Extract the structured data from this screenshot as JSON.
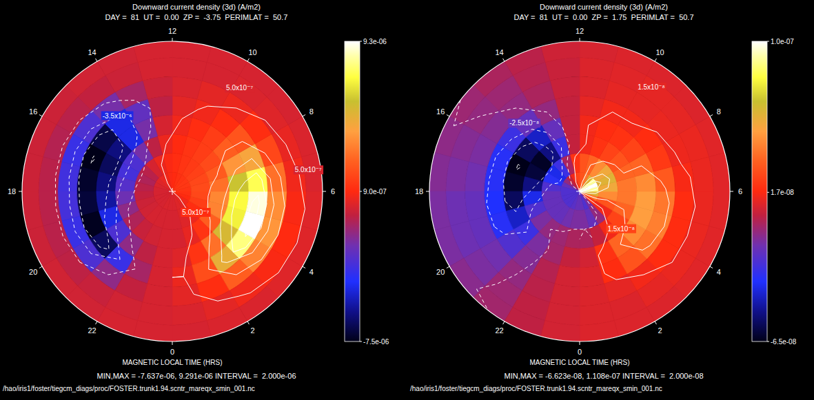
{
  "chart_data": [
    {
      "type": "polar_heatmap",
      "title": "Downward current density (3d) (A/m2)",
      "subtitle": "DAY =  81  UT =  0.00  ZP =  -3.75  PERIMLAT =  50.7",
      "axis_label": "MAGNETIC LOCAL TIME (HRS)",
      "footer": "MIN,MAX = -7.637e-06, 9.291e-06 INTERVAL =  2.000e-06",
      "source": "/hao/iris1/foster/tiegcm_diags/proc/FOSTER.trunk1.94.scntr_mareqx_smin_001.nc",
      "mlt_ticks": [
        0,
        2,
        4,
        6,
        8,
        10,
        12,
        14,
        16,
        18,
        20,
        22
      ],
      "mlt_edges": [
        0,
        1,
        2,
        3,
        4,
        5,
        6,
        7,
        8,
        9,
        10,
        11,
        12,
        13,
        14,
        15,
        16,
        17,
        18,
        19,
        20,
        21,
        22,
        23,
        24
      ],
      "lat_edges": [
        90,
        85,
        80,
        75,
        70,
        65,
        60,
        55,
        50.7
      ],
      "cells": [
        [
          1e-07,
          2e-07,
          3e-07,
          6e-07,
          9e-07,
          1.1e-06,
          1.2e-06,
          1.3e-06,
          1.3e-06,
          1.2e-06,
          1.1e-06,
          9e-07,
          8e-07,
          6e-07,
          4e-07,
          2e-07,
          1e-07,
          0,
          0,
          0,
          0,
          0,
          1e-07,
          1e-07
        ],
        [
          0,
          2e-07,
          5e-07,
          1e-06,
          1.5e-06,
          1.8e-06,
          1.9e-06,
          1.8e-06,
          1.6e-06,
          1.4e-06,
          1.2e-06,
          1e-06,
          8e-07,
          5e-07,
          0,
          -6e-07,
          -8e-07,
          -6e-07,
          -4e-07,
          -2e-07,
          -1e-07,
          0,
          0,
          0
        ],
        [
          0,
          4e-07,
          1.2e-06,
          2.5e-06,
          3.5e-06,
          3.6e-06,
          3e-06,
          2.4e-06,
          1.9e-06,
          1.5e-06,
          1.2e-06,
          9e-07,
          5e-07,
          -5e-07,
          -2e-06,
          -3e-06,
          -3.2e-06,
          -2.8e-06,
          -2.2e-06,
          -1.5e-06,
          -8e-07,
          -3e-07,
          -1e-07,
          0
        ],
        [
          2e-07,
          1.2e-06,
          3e-06,
          5.5e-06,
          7e-06,
          7.2e-06,
          6e-06,
          4e-06,
          2.5e-06,
          1.5e-06,
          1e-06,
          6e-07,
          0,
          -2e-06,
          -4.5e-06,
          -6e-06,
          -6.5e-06,
          -6e-06,
          -5.5e-06,
          -4.5e-06,
          -3e-06,
          -1.5e-06,
          -5e-07,
          0
        ],
        [
          5e-07,
          2e-06,
          5e-06,
          8e-06,
          9.3e-06,
          9e-06,
          7.5e-06,
          4.5e-06,
          2.2e-06,
          1e-06,
          6e-07,
          3e-07,
          -5e-07,
          -2.5e-06,
          -4.5e-06,
          -6.8e-06,
          -7.6e-06,
          -7.2e-06,
          -7e-06,
          -7.4e-06,
          -6.5e-06,
          -3.5e-06,
          -1e-06,
          0
        ],
        [
          3e-07,
          1e-06,
          2.5e-06,
          3.5e-06,
          4e-06,
          3.8e-06,
          3e-06,
          1.8e-06,
          1e-06,
          5e-07,
          3e-07,
          1e-07,
          -2e-07,
          -1e-06,
          -2e-06,
          -3e-06,
          -3.5e-06,
          -3.3e-06,
          -3.2e-06,
          -3.5e-06,
          -3e-06,
          -1.5e-06,
          -4e-07,
          0
        ],
        [
          1e-07,
          3e-07,
          6e-07,
          8e-07,
          9e-07,
          8e-07,
          6e-07,
          4e-07,
          2e-07,
          1e-07,
          0,
          0,
          0,
          -2e-07,
          -4e-07,
          -6e-07,
          -7e-07,
          -6e-07,
          -6e-07,
          -6e-07,
          -5e-07,
          -3e-07,
          -1e-07,
          0
        ],
        [
          0,
          1e-07,
          1e-07,
          2e-07,
          2e-07,
          2e-07,
          1e-07,
          1e-07,
          0,
          0,
          0,
          0,
          0,
          -1e-07,
          -1e-07,
          -2e-07,
          -2e-07,
          -2e-07,
          -2e-07,
          -2e-07,
          -1e-07,
          -1e-07,
          0,
          0
        ]
      ],
      "contour_levels": [
        -7.5e-06,
        -5.5e-06,
        -3.5e-06,
        -1.5e-06,
        5e-07,
        2.5e-06,
        4.5e-06,
        6.5e-06,
        8.5e-06
      ],
      "colorbar": {
        "range": [
          -7.5e-06,
          9.3e-06
        ],
        "ticks": [
          {
            "value": 9.3e-06,
            "label": "9.3e-06"
          },
          {
            "value": 9e-07,
            "label": "9.0e-07"
          },
          {
            "value": -7.5e-06,
            "label": "-7.5e-06"
          }
        ]
      },
      "annotations": [
        {
          "text": "5.0x10⁻⁷",
          "mlt": 9.8,
          "lat": 57.7
        },
        {
          "text": "5.0x10⁻⁷",
          "mlt": 6.6,
          "lat": 54
        },
        {
          "text": "-3.5x10⁻⁶",
          "mlt": 14.4,
          "lat": 65.5
        },
        {
          "text": "5.0x10⁻⁷",
          "mlt": 3.2,
          "lat": 81.8
        }
      ]
    },
    {
      "type": "polar_heatmap",
      "title": "Downward current density (3d) (A/m2)",
      "subtitle": "DAY =  81  UT =  0.00  ZP =  1.75  PERIMLAT =  50.7",
      "axis_label": "MAGNETIC LOCAL TIME (HRS)",
      "footer": "MIN,MAX = -6.623e-08, 1.108e-07 INTERVAL =  2.000e-08",
      "source": "/hao/iris1/foster/tiegcm_diags/proc/FOSTER.trunk1.94.scntr_mareqx_smin_001.nc",
      "mlt_ticks": [
        0,
        2,
        4,
        6,
        8,
        10,
        12,
        14,
        16,
        18,
        20,
        22
      ],
      "mlt_edges": [
        0,
        1,
        2,
        3,
        4,
        5,
        6,
        7,
        8,
        9,
        10,
        11,
        12,
        13,
        14,
        15,
        16,
        17,
        18,
        19,
        20,
        21,
        22,
        23,
        24
      ],
      "lat_edges": [
        90,
        85,
        80,
        75,
        70,
        65,
        60,
        55,
        50.7
      ],
      "cells": [
        [
          -1.5e-08,
          -2e-08,
          -1e-08,
          2e-08,
          4e-08,
          6e-08,
          9e-08,
          1.11e-07,
          9e-08,
          6e-08,
          4e-08,
          3e-08,
          2.5e-08,
          1.5e-08,
          5e-09,
          -5e-09,
          -1.5e-08,
          -2e-08,
          -2e-08,
          -2e-08,
          -2e-08,
          -2e-08,
          -1.8e-08,
          -1.5e-08
        ],
        [
          -1e-08,
          -1.5e-08,
          -5e-09,
          1.5e-08,
          3e-08,
          4.5e-08,
          5.5e-08,
          6e-08,
          5.5e-08,
          4.5e-08,
          3.5e-08,
          3e-08,
          2e-08,
          0,
          -2.5e-08,
          -3.5e-08,
          -3e-08,
          -2e-08,
          -1.5e-08,
          -1.5e-08,
          -1.5e-08,
          -1.5e-08,
          -1.2e-08,
          -1e-08
        ],
        [
          0,
          5e-09,
          1.5e-08,
          2.5e-08,
          3.5e-08,
          4e-08,
          4e-08,
          3.5e-08,
          3e-08,
          2.5e-08,
          2e-08,
          1.5e-08,
          5e-09,
          -2.5e-08,
          -5e-08,
          -6.3e-08,
          -6e-08,
          -5e-08,
          -3.5e-08,
          -2e-08,
          -1e-08,
          -5e-09,
          -3e-09,
          0
        ],
        [
          8e-09,
          2e-08,
          3.5e-08,
          4.5e-08,
          5e-08,
          5e-08,
          4.5e-08,
          3.5e-08,
          2.5e-08,
          2e-08,
          1.8e-08,
          1.5e-08,
          5e-09,
          -1.5e-08,
          -4e-08,
          -5.5e-08,
          -6.6e-08,
          -6.2e-08,
          -5.5e-08,
          -4e-08,
          -2.5e-08,
          -1e-08,
          -2e-09,
          5e-09
        ],
        [
          1e-08,
          1.8e-08,
          3e-08,
          3.8e-08,
          4.2e-08,
          4e-08,
          3.2e-08,
          2.2e-08,
          1.8e-08,
          1.5e-08,
          1.5e-08,
          1.2e-08,
          5e-09,
          -5e-09,
          -1.5e-08,
          -2.5e-08,
          -3e-08,
          -3e-08,
          -3.2e-08,
          -3e-08,
          -2e-08,
          -8e-09,
          2e-09,
          8e-09
        ],
        [
          1e-08,
          1.2e-08,
          1.5e-08,
          1.8e-08,
          1.8e-08,
          1.8e-08,
          1.6e-08,
          1.4e-08,
          1.3e-08,
          1.2e-08,
          1.2e-08,
          1e-08,
          6e-09,
          0,
          -5e-09,
          -8e-09,
          -1e-08,
          -1.2e-08,
          -1.5e-08,
          -1.5e-08,
          -1.2e-08,
          -5e-09,
          3e-09,
          8e-09
        ],
        [
          1e-08,
          1e-08,
          1.2e-08,
          1.3e-08,
          1.3e-08,
          1.3e-08,
          1.3e-08,
          1.3e-08,
          1.2e-08,
          1.2e-08,
          1.1e-08,
          1e-08,
          6e-09,
          2e-09,
          -3e-09,
          -5e-09,
          -8e-09,
          -1e-08,
          -1.3e-08,
          -1.3e-08,
          -1e-08,
          -3e-09,
          4e-09,
          8e-09
        ],
        [
          1e-08,
          1e-08,
          1e-08,
          1.1e-08,
          1.1e-08,
          1.1e-08,
          1.1e-08,
          1.1e-08,
          1e-08,
          1e-08,
          1e-08,
          9e-09,
          7e-09,
          3e-09,
          0,
          -3e-09,
          -6e-09,
          -8e-09,
          -1e-08,
          -1e-08,
          -7e-09,
          -2e-09,
          4e-09,
          8e-09
        ]
      ],
      "contour_levels": [
        -6.5e-08,
        -4.5e-08,
        -2.5e-08,
        -5e-09,
        1.5e-08,
        3.5e-08,
        5.5e-08,
        7.5e-08,
        9.5e-08
      ],
      "colorbar": {
        "range": [
          -6.5e-08,
          1e-07
        ],
        "ticks": [
          {
            "value": 1e-07,
            "label": "1.0e-07"
          },
          {
            "value": 1.7e-08,
            "label": "1.7e-08"
          },
          {
            "value": -6.5e-08,
            "label": "-6.5e-08"
          }
        ]
      },
      "annotations": [
        {
          "text": "1.5x10⁻⁸",
          "mlt": 9.7,
          "lat": 56.9
        },
        {
          "text": "-2.5x10⁻⁸",
          "mlt": 14.6,
          "lat": 67
        },
        {
          "text": "1.5x10⁻⁸",
          "mlt": 3.2,
          "lat": 75.4
        }
      ]
    }
  ]
}
